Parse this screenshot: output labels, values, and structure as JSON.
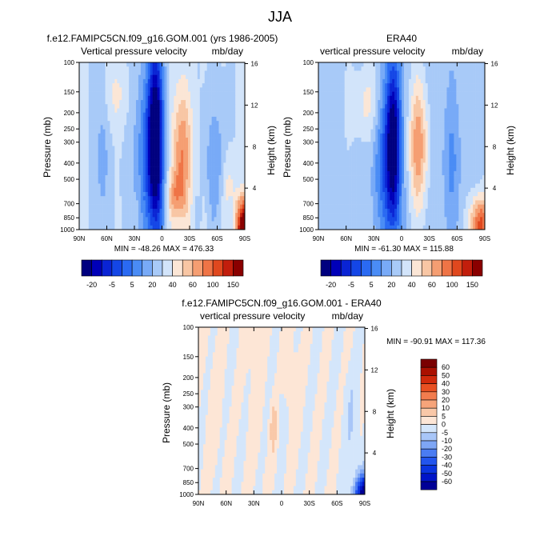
{
  "figure_title": "JJA",
  "colors": {
    "scale": [
      "#00007f",
      "#0000b8",
      "#0a24d4",
      "#1446e6",
      "#2a6af2",
      "#4a8cf5",
      "#78aaf7",
      "#a8caf8",
      "#d2e4fa",
      "#fbe6d6",
      "#f8c6a4",
      "#f59e72",
      "#ef7446",
      "#e0481e",
      "#c21e0c",
      "#8a0000"
    ],
    "diff_scale": [
      "#000096",
      "#0014c8",
      "#0a34e0",
      "#2255ee",
      "#4a7cf2",
      "#7ea6f5",
      "#a8c6f8",
      "#d4e6fb",
      "#fde6d6",
      "#f9c8a8",
      "#f6a47a",
      "#f27c4e",
      "#e85022",
      "#d02a0c",
      "#aa1000",
      "#7a0000"
    ]
  },
  "chart_data": [
    {
      "type": "heatmap",
      "title": "f.e12.FAMIPC5CN.f09_g16.GOM.001 (yrs 1986-2005)",
      "subtitle_left": "Vertical pressure velocity",
      "subtitle_right": "mb/day",
      "xlabel": "",
      "ylabel": "Pressure (mb)",
      "y2label": "Height (km)",
      "x_ticks": [
        "90N",
        "60N",
        "30N",
        "0",
        "30S",
        "60S",
        "90S"
      ],
      "y_ticks": [
        "100",
        "150",
        "200",
        "250",
        "300",
        "400",
        "500",
        "700",
        "850",
        "1000"
      ],
      "y2_ticks": [
        "16",
        "12",
        "8",
        "4"
      ],
      "min_max": "MIN = -48.26  MAX = 476.33",
      "colorbar_labels": [
        "-20",
        "-5",
        "5",
        "20",
        "40",
        "60",
        "100",
        "150"
      ]
    },
    {
      "type": "heatmap",
      "title": "ERA40",
      "subtitle_left": "vertical pressure velocity",
      "subtitle_right": "mb/day",
      "xlabel": "",
      "ylabel": "Pressure (mb)",
      "y2label": "Height (km)",
      "x_ticks": [
        "90N",
        "60N",
        "30N",
        "0",
        "30S",
        "60S",
        "90S"
      ],
      "y_ticks": [
        "100",
        "150",
        "200",
        "250",
        "300",
        "400",
        "500",
        "700",
        "850",
        "1000"
      ],
      "y2_ticks": [
        "16",
        "12",
        "8",
        "4"
      ],
      "min_max": "MIN = -61.30  MAX = 115.88",
      "colorbar_labels": [
        "-20",
        "-5",
        "5",
        "20",
        "40",
        "60",
        "100",
        "150"
      ]
    },
    {
      "type": "heatmap",
      "title": "f.e12.FAMIPC5CN.f09_g16.GOM.001 - ERA40",
      "subtitle_left": "vertical pressure velocity",
      "subtitle_right": "mb/day",
      "xlabel": "",
      "ylabel": "Pressure (mb)",
      "y2label": "Height (km)",
      "x_ticks": [
        "90N",
        "60N",
        "30N",
        "0",
        "30S",
        "60S",
        "90S"
      ],
      "y_ticks": [
        "100",
        "150",
        "200",
        "250",
        "300",
        "400",
        "500",
        "700",
        "850",
        "1000"
      ],
      "y2_ticks": [
        "16",
        "12",
        "8",
        "4"
      ],
      "min_max": "MIN = -90.91  MAX = 117.36",
      "colorbar_labels": [
        "60",
        "50",
        "40",
        "30",
        "20",
        "10",
        "5",
        "0",
        "-5",
        "-10",
        "-20",
        "-30",
        "-40",
        "-50",
        "-60"
      ]
    }
  ]
}
